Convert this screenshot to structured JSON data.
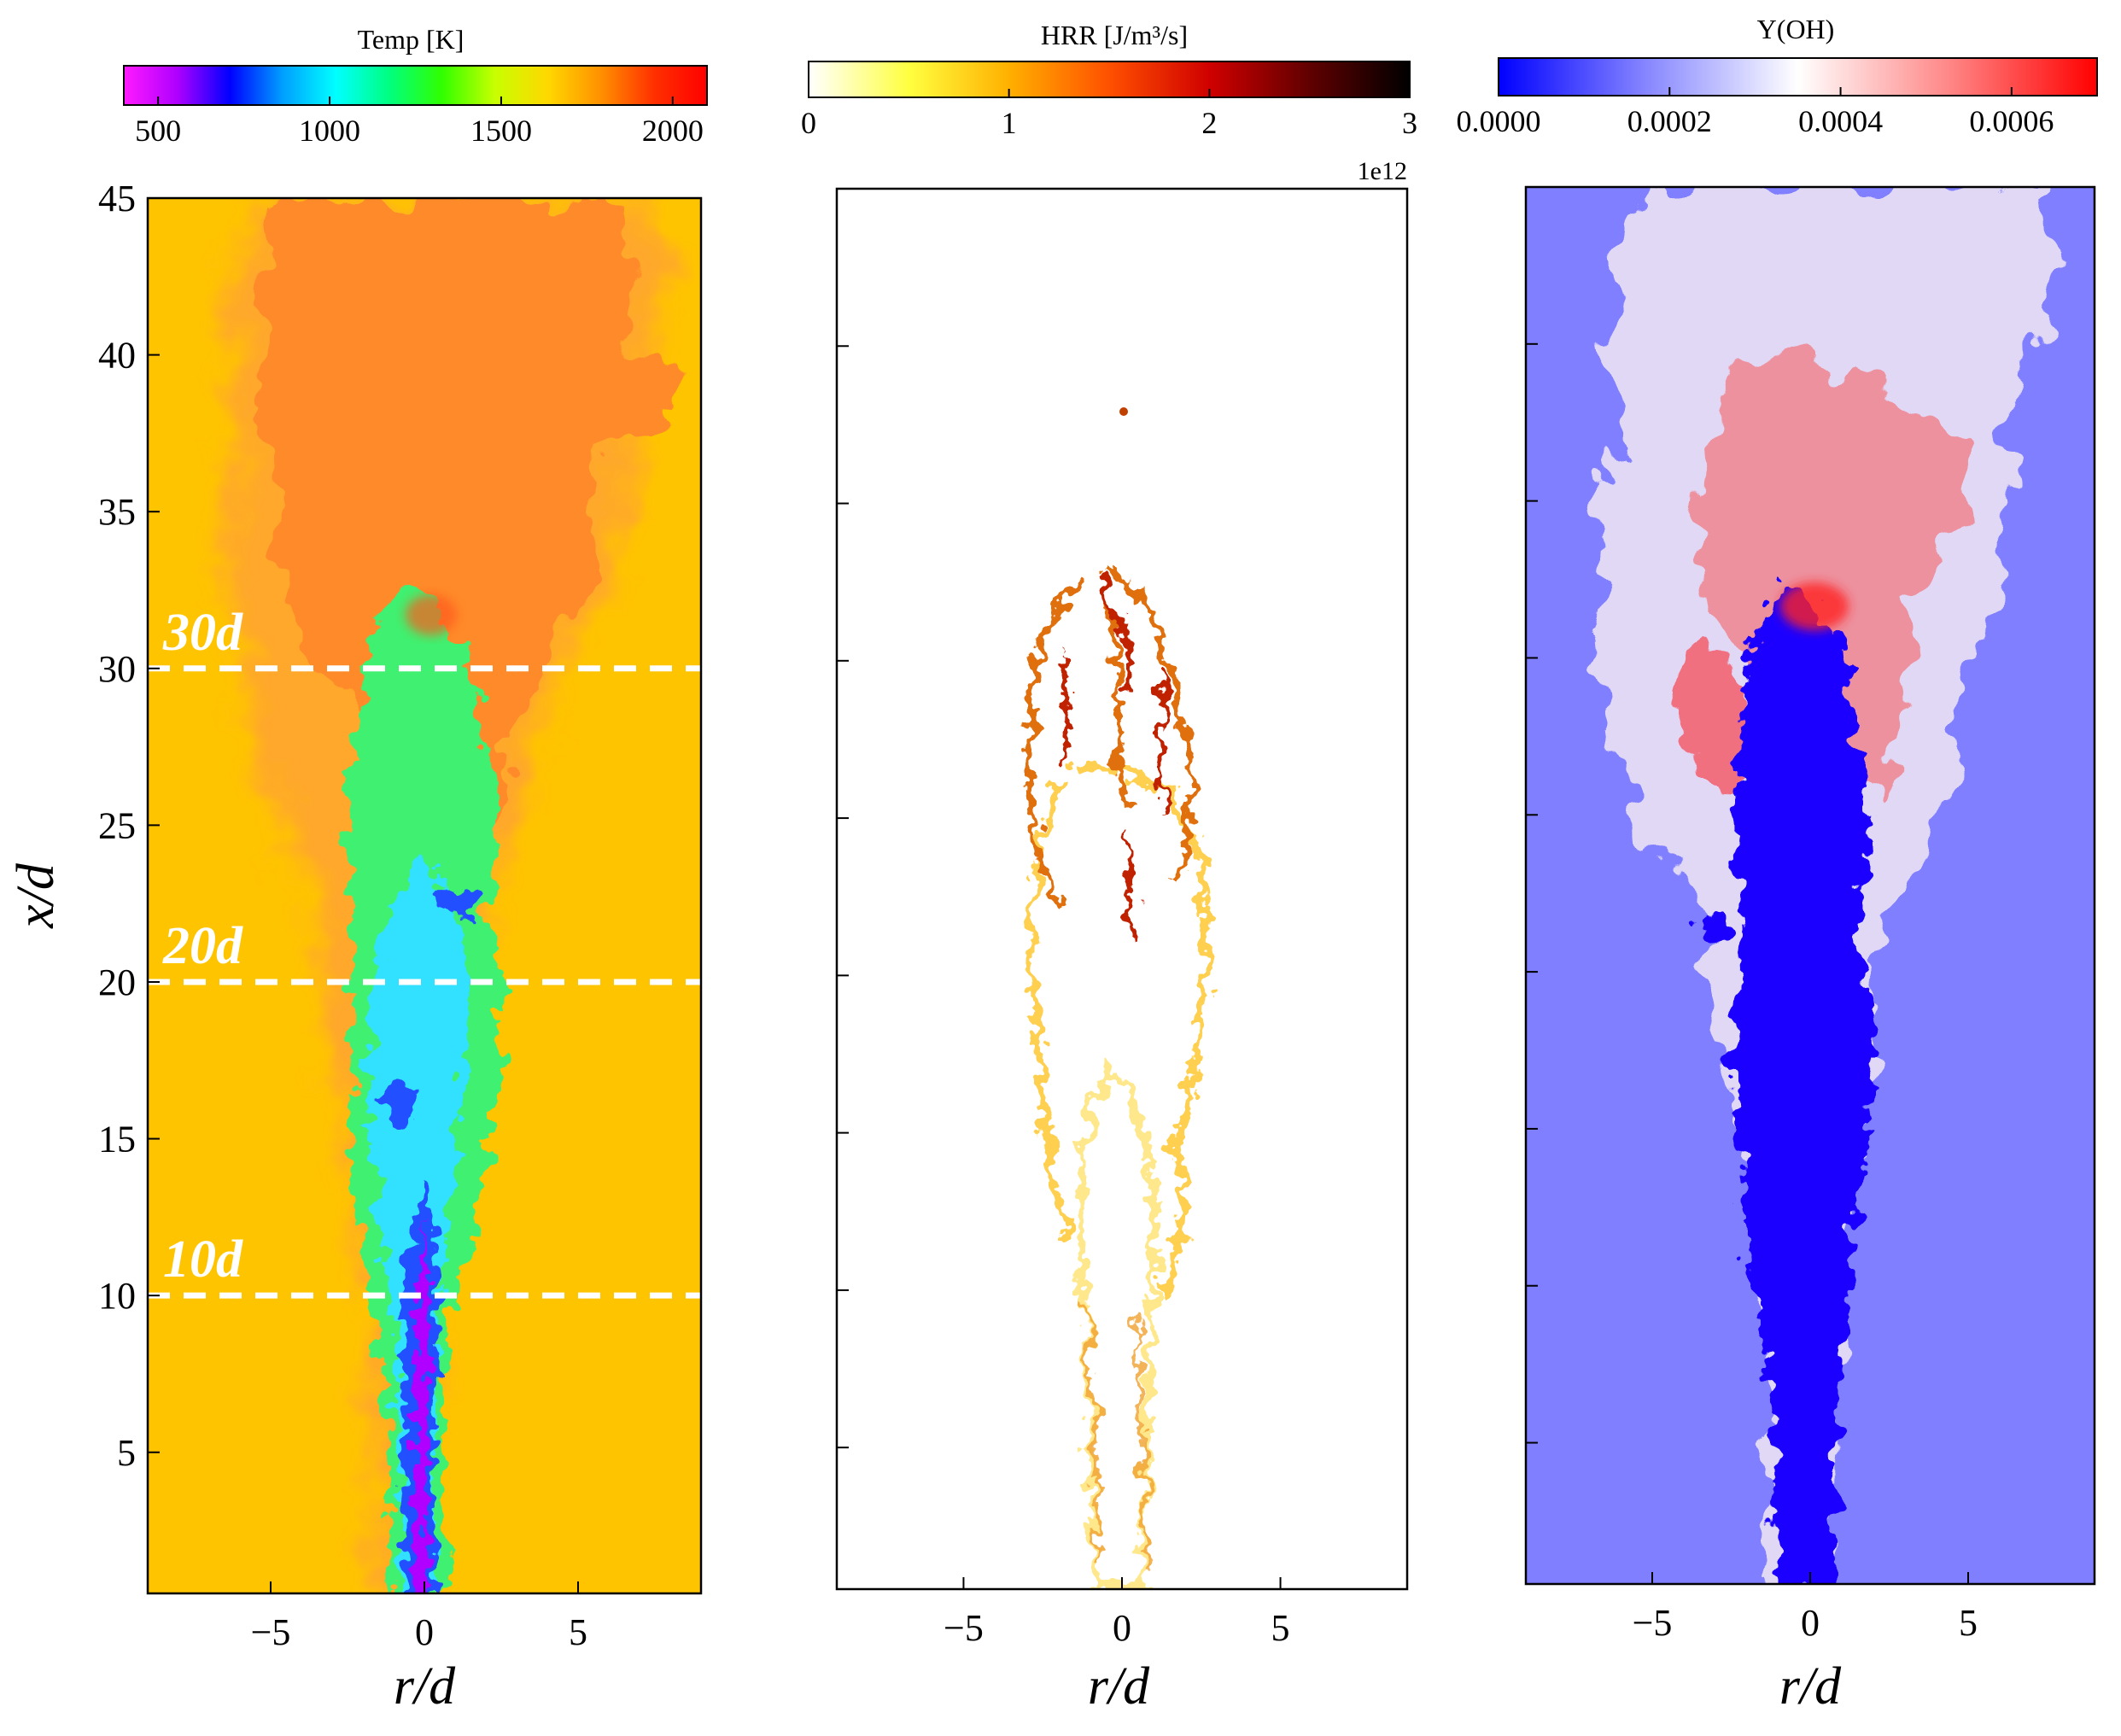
{
  "figure": {
    "description_label": "Instantaneous contour panels of a turbulent jet flame"
  },
  "chart_data": [
    {
      "type": "heatmap",
      "panel": "temperature",
      "colorbar": {
        "title": "Temp [K]",
        "ticks": [
          "500",
          "1000",
          "1500",
          "2000"
        ],
        "tick_values": [
          500,
          1000,
          1500,
          2000
        ],
        "range": [
          400,
          2100
        ],
        "colormap": [
          "#ff1aff",
          "#b000ff",
          "#0000ff",
          "#00a0ff",
          "#00ffff",
          "#00ff80",
          "#30ff00",
          "#c8ff00",
          "#ffd800",
          "#ff9000",
          "#ff3000",
          "#ff0000"
        ]
      },
      "xlabel": "r/d",
      "ylabel": "x/d",
      "xlim": [
        -9,
        9
      ],
      "ylim": [
        0.5,
        45
      ],
      "xticks": [
        "−5",
        "0",
        "5"
      ],
      "xtick_values": [
        -5,
        0,
        5
      ],
      "yticks": [
        "5",
        "10",
        "15",
        "20",
        "25",
        "30",
        "35",
        "40",
        "45"
      ],
      "ytick_values": [
        5,
        10,
        15,
        20,
        25,
        30,
        35,
        40,
        45
      ],
      "background_color": "#ffc400",
      "plume_color": "#ff8a2a",
      "core_colors": [
        "#b000ff",
        "#2050ff",
        "#30e0ff",
        "#40f070"
      ],
      "reference_lines": [
        {
          "x_over_d": 10,
          "label": "10d"
        },
        {
          "x_over_d": 20,
          "label": "20d"
        },
        {
          "x_over_d": 30,
          "label": "30d"
        }
      ]
    },
    {
      "type": "heatmap",
      "panel": "heat_release_rate",
      "colorbar": {
        "title": "HRR [J/m³/s]",
        "ticks": [
          "0",
          "1",
          "2",
          "3"
        ],
        "tick_values": [
          0,
          1,
          2,
          3
        ],
        "range": [
          0,
          3
        ],
        "scale_label": "1e12",
        "colormap": [
          "#ffffff",
          "#ffff40",
          "#ffb000",
          "#ff5000",
          "#d00000",
          "#600000",
          "#000000"
        ]
      },
      "xlabel": "r/d",
      "xlim": [
        -9,
        9
      ],
      "ylim": [
        0.5,
        45
      ],
      "xticks": [
        "−5",
        "0",
        "5"
      ],
      "xtick_values": [
        -5,
        0,
        5
      ],
      "ytick_values": [
        5,
        10,
        15,
        20,
        25,
        30,
        35,
        40
      ],
      "background_color": "#ffffff",
      "flame_colors": [
        "#ffe680",
        "#f5a020",
        "#c02000"
      ]
    },
    {
      "type": "heatmap",
      "panel": "OH_mass_fraction",
      "colorbar": {
        "title": "Y(OH)",
        "ticks": [
          "0.0000",
          "0.0002",
          "0.0004",
          "0.0006"
        ],
        "tick_values": [
          0.0,
          0.0002,
          0.0004,
          0.0006
        ],
        "range": [
          0.0,
          0.0007
        ],
        "colormap": [
          "#0000ff",
          "#8888ff",
          "#ffffff",
          "#ff8888",
          "#ff0000"
        ]
      },
      "xlabel": "r/d",
      "xlim": [
        -9,
        9
      ],
      "ylim": [
        0.5,
        45
      ],
      "xticks": [
        "−5",
        "0",
        "5"
      ],
      "xtick_values": [
        -5,
        0,
        5
      ],
      "ytick_values": [
        5,
        10,
        15,
        20,
        25,
        30,
        35,
        40
      ],
      "background_color": "#7f7fff",
      "plume_colors": [
        "#f2e8f4",
        "#f08a95",
        "#1a00ff"
      ]
    }
  ]
}
